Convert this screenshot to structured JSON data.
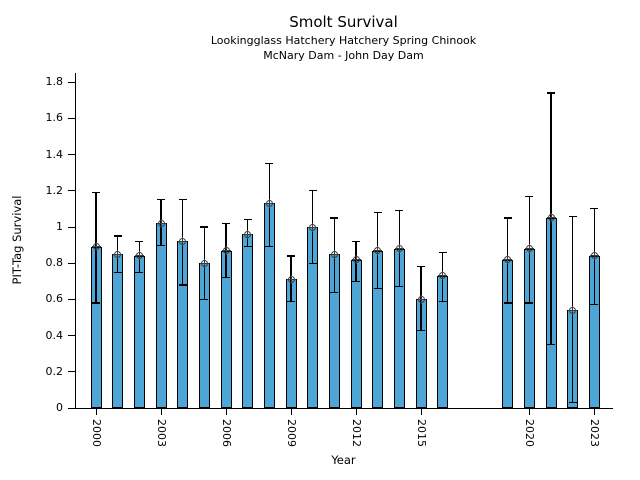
{
  "chart_data": {
    "type": "bar",
    "title": "Smolt Survival",
    "subtitle_line1": "Lookingglass Hatchery Hatchery Spring Chinook",
    "subtitle_line2": "McNary Dam - John Day Dam",
    "xlabel": "Year",
    "ylabel": "PIT-Tag Survival",
    "ylim": [
      0,
      1.85
    ],
    "xlim": [
      1999.1,
      2023.9
    ],
    "grid": false,
    "legend": false,
    "bar_color": "#4DA6D6",
    "bar_edge_color": "#000000",
    "error_bar_color": "#000000",
    "marker": "circle-plus-icon",
    "marker_color": "#3a3a3a",
    "y_ticks": [
      {
        "value": 0,
        "label": "0"
      },
      {
        "value": 0.2,
        "label": "0.2"
      },
      {
        "value": 0.4,
        "label": "0.4"
      },
      {
        "value": 0.6,
        "label": "0.6"
      },
      {
        "value": 0.8,
        "label": "0.8"
      },
      {
        "value": 1,
        "label": "1"
      },
      {
        "value": 1.2,
        "label": "1.2"
      },
      {
        "value": 1.4,
        "label": "1.4"
      },
      {
        "value": 1.6,
        "label": "1.6"
      },
      {
        "value": 1.8,
        "label": "1.8"
      }
    ],
    "x_ticks": [
      2000,
      2003,
      2006,
      2009,
      2012,
      2015,
      2020,
      2023
    ],
    "points": [
      {
        "year": 2000,
        "survival": 0.89,
        "ci_low": 0.58,
        "ci_high": 1.19
      },
      {
        "year": 2001,
        "survival": 0.85,
        "ci_low": 0.75,
        "ci_high": 0.95
      },
      {
        "year": 2002,
        "survival": 0.84,
        "ci_low": 0.75,
        "ci_high": 0.92
      },
      {
        "year": 2003,
        "survival": 1.02,
        "ci_low": 0.9,
        "ci_high": 1.15
      },
      {
        "year": 2004,
        "survival": 0.92,
        "ci_low": 0.68,
        "ci_high": 1.15
      },
      {
        "year": 2005,
        "survival": 0.8,
        "ci_low": 0.6,
        "ci_high": 1.0
      },
      {
        "year": 2006,
        "survival": 0.87,
        "ci_low": 0.72,
        "ci_high": 1.02
      },
      {
        "year": 2007,
        "survival": 0.96,
        "ci_low": 0.89,
        "ci_high": 1.04
      },
      {
        "year": 2008,
        "survival": 1.13,
        "ci_low": 0.89,
        "ci_high": 1.35
      },
      {
        "year": 2009,
        "survival": 0.71,
        "ci_low": 0.59,
        "ci_high": 0.84
      },
      {
        "year": 2010,
        "survival": 1.0,
        "ci_low": 0.8,
        "ci_high": 1.2
      },
      {
        "year": 2011,
        "survival": 0.85,
        "ci_low": 0.64,
        "ci_high": 1.05
      },
      {
        "year": 2012,
        "survival": 0.82,
        "ci_low": 0.7,
        "ci_high": 0.92
      },
      {
        "year": 2013,
        "survival": 0.87,
        "ci_low": 0.66,
        "ci_high": 1.08
      },
      {
        "year": 2014,
        "survival": 0.88,
        "ci_low": 0.67,
        "ci_high": 1.09
      },
      {
        "year": 2015,
        "survival": 0.6,
        "ci_low": 0.43,
        "ci_high": 0.78
      },
      {
        "year": 2016,
        "survival": 0.73,
        "ci_low": 0.59,
        "ci_high": 0.86
      },
      {
        "year": 2019,
        "survival": 0.82,
        "ci_low": 0.58,
        "ci_high": 1.05
      },
      {
        "year": 2020,
        "survival": 0.88,
        "ci_low": 0.58,
        "ci_high": 1.17
      },
      {
        "year": 2021,
        "survival": 1.05,
        "ci_low": 0.35,
        "ci_high": 1.74
      },
      {
        "year": 2022,
        "survival": 0.54,
        "ci_low": 0.03,
        "ci_high": 1.06
      },
      {
        "year": 2023,
        "survival": 0.84,
        "ci_low": 0.57,
        "ci_high": 1.1
      }
    ]
  }
}
